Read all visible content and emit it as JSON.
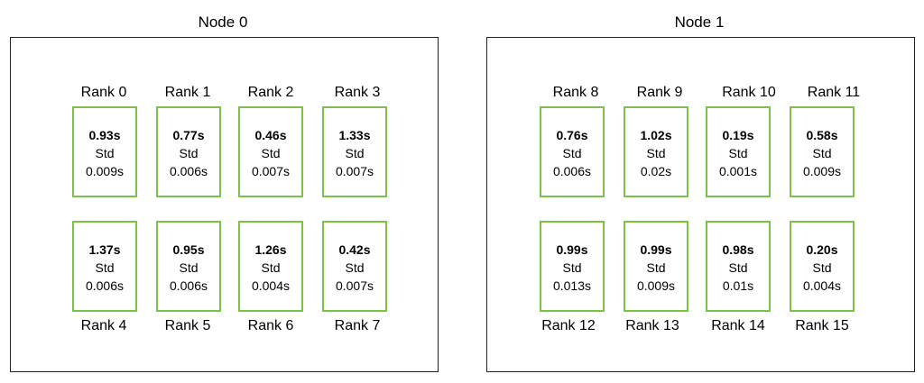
{
  "std_label": "Std",
  "nodes": [
    {
      "title": "Node 0",
      "ranks": [
        {
          "label": "Rank 0",
          "time": "0.93s",
          "std": "0.009s"
        },
        {
          "label": "Rank 1",
          "time": "0.77s",
          "std": "0.006s"
        },
        {
          "label": "Rank 2",
          "time": "0.46s",
          "std": "0.007s"
        },
        {
          "label": "Rank 3",
          "time": "1.33s",
          "std": "0.007s"
        },
        {
          "label": "Rank 4",
          "time": "1.37s",
          "std": "0.006s"
        },
        {
          "label": "Rank 5",
          "time": "0.95s",
          "std": "0.006s"
        },
        {
          "label": "Rank 6",
          "time": "1.26s",
          "std": "0.004s"
        },
        {
          "label": "Rank 7",
          "time": "0.42s",
          "std": "0.007s"
        }
      ]
    },
    {
      "title": "Node 1",
      "ranks": [
        {
          "label": "Rank 8",
          "time": "0.76s",
          "std": "0.006s"
        },
        {
          "label": "Rank 9",
          "time": "1.02s",
          "std": "0.02s"
        },
        {
          "label": "Rank 10",
          "time": "0.19s",
          "std": "0.001s"
        },
        {
          "label": "Rank 11",
          "time": "0.58s",
          "std": "0.009s"
        },
        {
          "label": "Rank 12",
          "time": "0.99s",
          "std": "0.013s"
        },
        {
          "label": "Rank 13",
          "time": "0.99s",
          "std": "0.009s"
        },
        {
          "label": "Rank 14",
          "time": "0.98s",
          "std": "0.01s"
        },
        {
          "label": "Rank 15",
          "time": "0.20s",
          "std": "0.004s"
        }
      ]
    }
  ],
  "colors": {
    "card_border": "#7cc24a",
    "node_border": "#222222"
  }
}
